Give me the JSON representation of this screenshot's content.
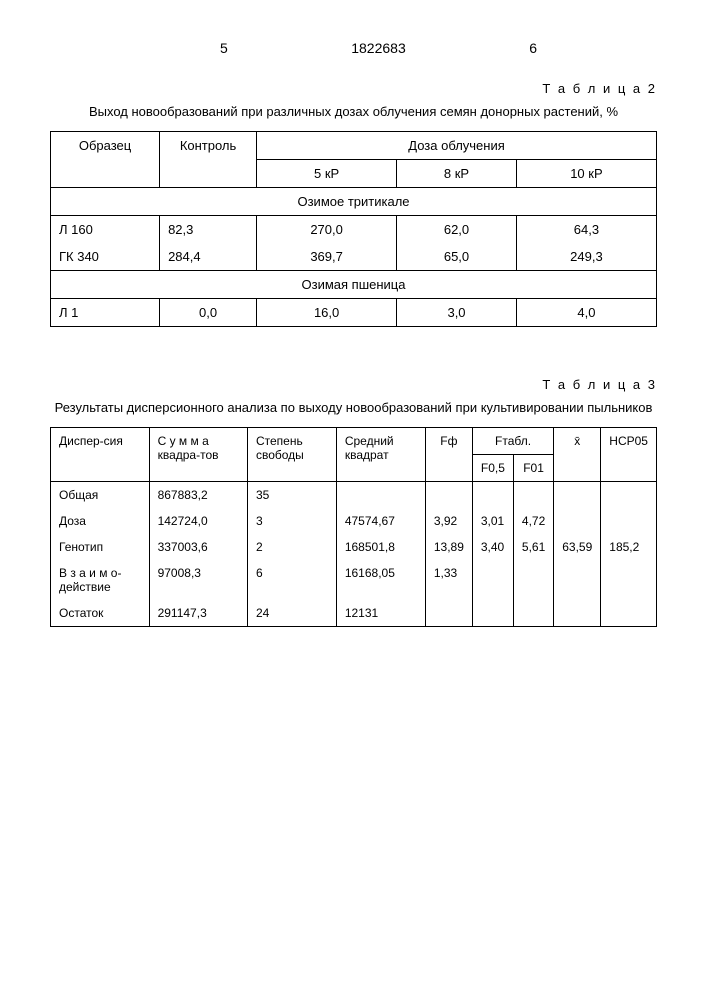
{
  "header": {
    "left_num": "5",
    "center_num": "1822683",
    "right_num": "6"
  },
  "table2": {
    "label": "Т а б л и ц а 2",
    "caption": "Выход новообразований при различных дозах облучения семян донорных растений, %",
    "columns": {
      "sample": "Образец",
      "control": "Контроль",
      "dose_header": "Доза облучения",
      "dose1": "5 кР",
      "dose2": "8 кР",
      "dose3": "10 кР"
    },
    "section1": "Озимое тритикале",
    "rows1": [
      {
        "sample": "Л 160",
        "control": "82,3",
        "d1": "270,0",
        "d2": "62,0",
        "d3": "64,3"
      },
      {
        "sample": "ГК 340",
        "control": "284,4",
        "d1": "369,7",
        "d2": "65,0",
        "d3": "249,3"
      }
    ],
    "section2": "Озимая пшеница",
    "rows2": [
      {
        "sample": "Л 1",
        "control": "0,0",
        "d1": "16,0",
        "d2": "3,0",
        "d3": "4,0"
      }
    ]
  },
  "table3": {
    "label": "Т а б л и ц а 3",
    "caption": "Результаты дисперсионного анализа по выходу новообразований при культивировании пыльников",
    "columns": {
      "disp": "Диспер-сия",
      "sumsq": "С у м м а квадра-тов",
      "df": "Степень свободы",
      "meansq": "Средний квадрат",
      "ff": "Fф",
      "ftabl": "Fтабл.",
      "f05": "F0,5",
      "f01": "F01",
      "xbar": "x̄",
      "hcp": "НСР05"
    },
    "rows": [
      {
        "disp": "Общая",
        "sumsq": "867883,2",
        "df": "35",
        "meansq": "",
        "ff": "",
        "f05": "",
        "f01": "",
        "xbar": "",
        "hcp": ""
      },
      {
        "disp": "Доза",
        "sumsq": "142724,0",
        "df": "3",
        "meansq": "47574,67",
        "ff": "3,92",
        "f05": "3,01",
        "f01": "4,72",
        "xbar": "",
        "hcp": ""
      },
      {
        "disp": "Генотип",
        "sumsq": "337003,6",
        "df": "2",
        "meansq": "168501,8",
        "ff": "13,89",
        "f05": "3,40",
        "f01": "5,61",
        "xbar": "63,59",
        "hcp": "185,2"
      },
      {
        "disp": "В з а и м о-действие",
        "sumsq": "97008,3",
        "df": "6",
        "meansq": "16168,05",
        "ff": "1,33",
        "f05": "",
        "f01": "",
        "xbar": "",
        "hcp": ""
      },
      {
        "disp": "Остаток",
        "sumsq": "291147,3",
        "df": "24",
        "meansq": "12131",
        "ff": "",
        "f05": "",
        "f01": "",
        "xbar": "",
        "hcp": ""
      }
    ]
  }
}
